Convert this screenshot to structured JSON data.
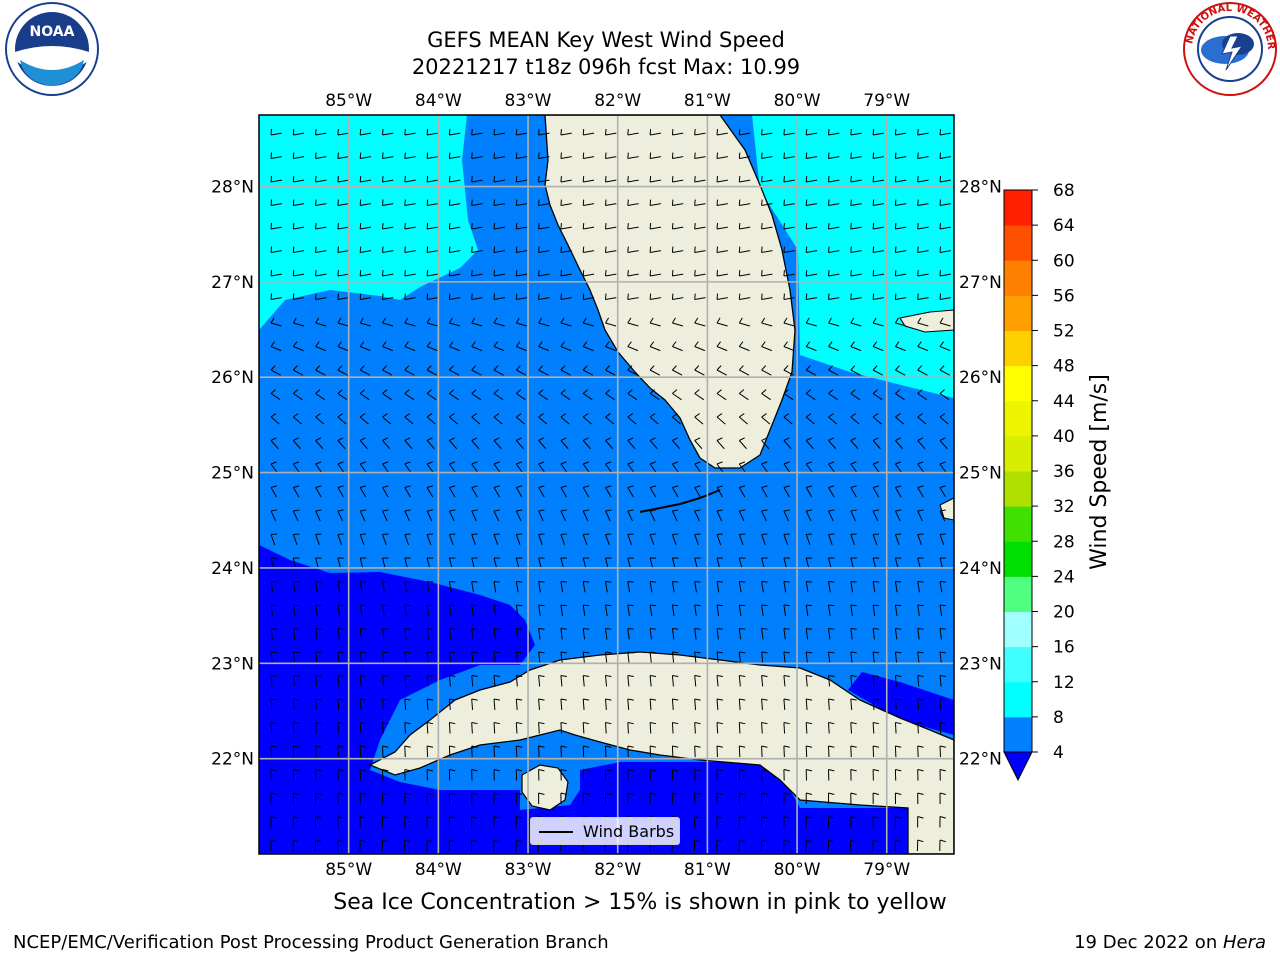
{
  "header": {
    "title_line1": "GEFS MEAN Key West Wind Speed",
    "title_line2": "20221217 t18z 096h fcst   Max: 10.99"
  },
  "map": {
    "lon_ticks": [
      "85°W",
      "84°W",
      "83°W",
      "82°W",
      "81°W",
      "80°W",
      "79°W"
    ],
    "lat_ticks": [
      "28°N",
      "27°N",
      "26°N",
      "25°N",
      "24°N",
      "23°N",
      "22°N"
    ],
    "extent": {
      "lon_min": -86.0,
      "lon_max": -78.25,
      "lat_min": 21.0,
      "lat_max": 28.75
    },
    "legend_label": "Wind Barbs",
    "colors": {
      "land": "#eeeedd",
      "band_4_8": "#0080ff",
      "band_below_4": "#0000ff",
      "band_8_12": "#00ffff",
      "coast": "#000000",
      "grid": "#b0b0b0"
    }
  },
  "colorbar": {
    "label": "Wind Speed [m/s]",
    "ticks": [
      "4",
      "8",
      "12",
      "16",
      "20",
      "24",
      "28",
      "32",
      "36",
      "40",
      "44",
      "48",
      "52",
      "56",
      "60",
      "64",
      "68"
    ],
    "colors": [
      "#0080ff",
      "#00ffff",
      "#40ffff",
      "#a0ffff",
      "#50ff80",
      "#00e000",
      "#40e000",
      "#b0e000",
      "#d8ee00",
      "#ecf400",
      "#ffff00",
      "#ffd000",
      "#ffa000",
      "#ff8000",
      "#ff5000",
      "#ff2000"
    ],
    "under_color": "#0000ff"
  },
  "notes": {
    "ice": "Sea Ice Concentration > 15% is shown in pink to yellow"
  },
  "footer": {
    "left": "NCEP/EMC/Verification Post Processing Product Generation Branch",
    "date": "19 Dec 2022 on ",
    "host": "Hera"
  },
  "logos": {
    "noaa": "NOAA",
    "nws": "NATIONAL WEATHER SERVICE"
  }
}
